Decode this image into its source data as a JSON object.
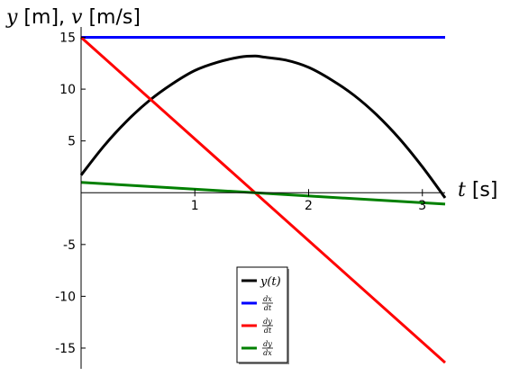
{
  "chart_data": {
    "type": "line",
    "ylabel": {
      "var1": "y",
      "unit1": " [m], ",
      "var2": "v",
      "unit2": " [m/s]"
    },
    "xlabel": {
      "var": "t",
      "unit": " [s]"
    },
    "xlim": [
      0,
      3.2
    ],
    "ylim": [
      -17,
      16
    ],
    "x_ticks": [
      {
        "value": 1,
        "label": "1"
      },
      {
        "value": 2,
        "label": "2"
      },
      {
        "value": 3,
        "label": "3"
      }
    ],
    "y_ticks": [
      {
        "value": 15,
        "label": "15"
      },
      {
        "value": 10,
        "label": "10"
      },
      {
        "value": 5,
        "label": "5"
      },
      {
        "value": -5,
        "label": "-5"
      },
      {
        "value": -10,
        "label": "-10"
      },
      {
        "value": -15,
        "label": "-15"
      }
    ],
    "legend_position": "bottom-center",
    "series": [
      {
        "key": "y",
        "color": "#000000",
        "legend": {
          "kind": "func",
          "text": "y(t)"
        },
        "x": [
          0,
          0.2,
          0.4,
          0.6,
          0.8,
          1.0,
          1.2,
          1.4,
          1.53,
          1.6,
          1.8,
          2.0,
          2.2,
          2.4,
          2.6,
          2.8,
          3.0,
          3.2
        ],
        "y": [
          1.7,
          4.5,
          6.9,
          8.9,
          10.5,
          11.8,
          12.6,
          13.1,
          13.2,
          13.1,
          12.8,
          12.1,
          10.9,
          9.4,
          7.5,
          5.2,
          2.5,
          -0.5
        ]
      },
      {
        "key": "dxdt",
        "color": "#0000ff",
        "legend": {
          "kind": "frac",
          "num": "dx",
          "den": "dt"
        },
        "x": [
          0,
          3.2
        ],
        "y": [
          15,
          15
        ]
      },
      {
        "key": "dydt",
        "color": "#ff0000",
        "legend": {
          "kind": "frac",
          "num": "dy",
          "den": "dt"
        },
        "x": [
          0,
          3.2
        ],
        "y": [
          15,
          -16.4
        ]
      },
      {
        "key": "dydx",
        "color": "#008000",
        "legend": {
          "kind": "frac",
          "num": "dy",
          "den": "dx"
        },
        "x": [
          0,
          3.2
        ],
        "y": [
          1.0,
          -1.1
        ]
      }
    ]
  }
}
